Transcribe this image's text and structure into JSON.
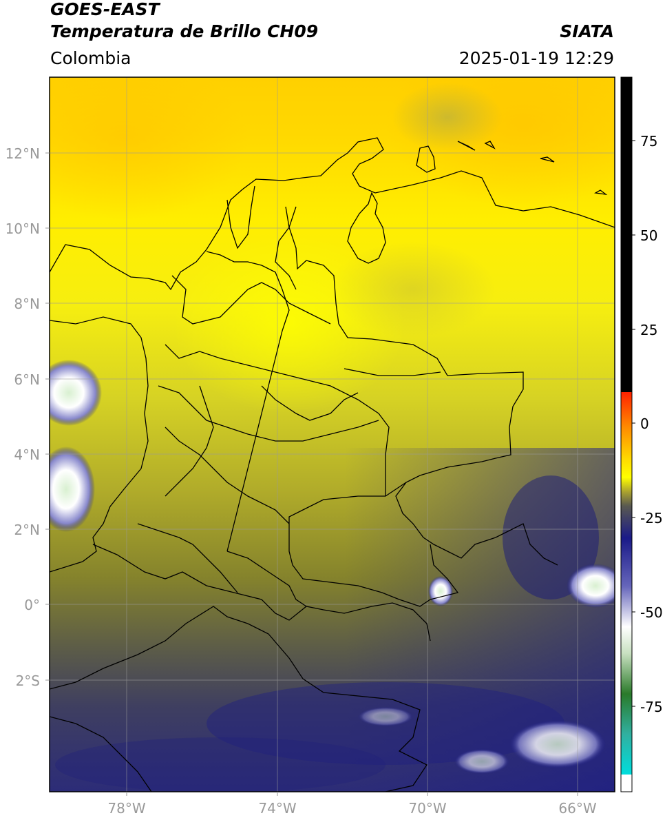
{
  "header": {
    "title_line1": "GOES-EAST",
    "title_line2": "Temperatura de Brillo CH09",
    "organization": "SIATA",
    "region": "Colombia",
    "timestamp": "2025-01-19 12:29"
  },
  "map": {
    "lat_labels": [
      "12°N",
      "10°N",
      "8°N",
      "6°N",
      "4°N",
      "2°N",
      "0°",
      "2°S"
    ],
    "lon_labels": [
      "78°W",
      "74°W",
      "70°W",
      "66°W"
    ],
    "extent": {
      "lon_min": -80.0,
      "lon_max": -65.0,
      "lat_min": -5.0,
      "lat_max": 14.0
    },
    "grid": true
  },
  "colorbar": {
    "tick_labels": [
      "75",
      "50",
      "25",
      "0",
      "-25",
      "-50",
      "-75"
    ],
    "tick_values": [
      75,
      50,
      25,
      0,
      -25,
      -50,
      -75
    ],
    "range": [
      -100,
      90
    ],
    "colors": {
      "black": "#000000",
      "red": "#ff2200",
      "orange": "#ff9900",
      "yellow": "#ffff00",
      "olive": "#8a8a2a",
      "gray": "#4a4a5a",
      "navy": "#1a1a88",
      "white": "#ffffff",
      "green": "#2a7a2a",
      "cyan": "#00dddd"
    }
  }
}
